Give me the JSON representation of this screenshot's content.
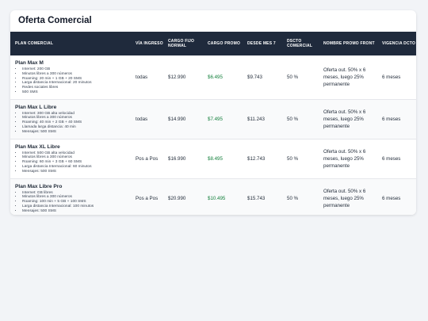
{
  "page": {
    "title": "Oferta Comercial"
  },
  "table": {
    "headers": [
      "PLAN COMERCIAL",
      "VÍA INGRESO",
      "CARGO FIJO NORMAL",
      "CARGO PROMO",
      "DESDE MES 7",
      "DSCTO COMERCIAL",
      "NOMBRE PROMO FRONT",
      "VIGENCIA DCTO"
    ],
    "rows": [
      {
        "plan": "Plan Max M",
        "features": [
          "Internet: 200 GB",
          "Minutos libres a 300 números",
          "Roaming: 20 min + 1 GB + 20 SMS",
          "Larga distancia Internacional: 20 minutos",
          "Redes sociales libres",
          "500 SMS"
        ],
        "via": "todas",
        "cargo_normal": "$12.990",
        "cargo_promo": "$6.495",
        "desde_mes7": "$9.743",
        "dscto": "50 %",
        "promo_front": "Oferta out. 50% x 6 meses, luego 25% permanente",
        "vigencia": "6 meses"
      },
      {
        "plan": "Plan Max L Libre",
        "features": [
          "Internet: 300 GB alta velocidad",
          "Minutos libres a 300 números",
          "Roaming: 40 min + 2 GB + 40 SMS",
          "Llamada larga distancia: 40 min",
          "Mensajes: 500 SMS"
        ],
        "via": "todas",
        "cargo_normal": "$14.990",
        "cargo_promo": "$7.495",
        "desde_mes7": "$11.243",
        "dscto": "50 %",
        "promo_front": "Oferta out. 50% x 6 meses, luego 25% permanente",
        "vigencia": "6 meses"
      },
      {
        "plan": "Plan Max XL Libre",
        "features": [
          "Internet: 500 GB alta velocidad",
          "Minutos libres a 300 números",
          "Roaming: 60 min + 3 GB + 60 SMS",
          "Larga distancia Internacional: 60 minutos",
          "Mensajes: 500 SMS"
        ],
        "via": "Pos a Pos",
        "cargo_normal": "$16.990",
        "cargo_promo": "$8.495",
        "desde_mes7": "$12.743",
        "dscto": "50 %",
        "promo_front": "Oferta out. 50% x 6 meses, luego 25% permanente",
        "vigencia": "6 meses"
      },
      {
        "plan": "Plan Max Libre Pro",
        "features": [
          "Internet: GB libres",
          "Minutos libres a 300 números",
          "Roaming: 100 min + 5 GB + 100 SMS",
          "Larga distancia Internacional: 100 minutos",
          "Mensajes: 500 SMS"
        ],
        "via": "Pos a Pos",
        "cargo_normal": "$20.990",
        "cargo_promo": "$10.495",
        "desde_mes7": "$15.743",
        "dscto": "50 %",
        "promo_front": "Oferta out. 50% x 6 meses, luego 25% permanente",
        "vigencia": "6 meses"
      }
    ]
  },
  "colors": {
    "header_bg": "#1f2a3c",
    "promo_text": "#15803d",
    "page_bg": "#f2f4f7"
  }
}
